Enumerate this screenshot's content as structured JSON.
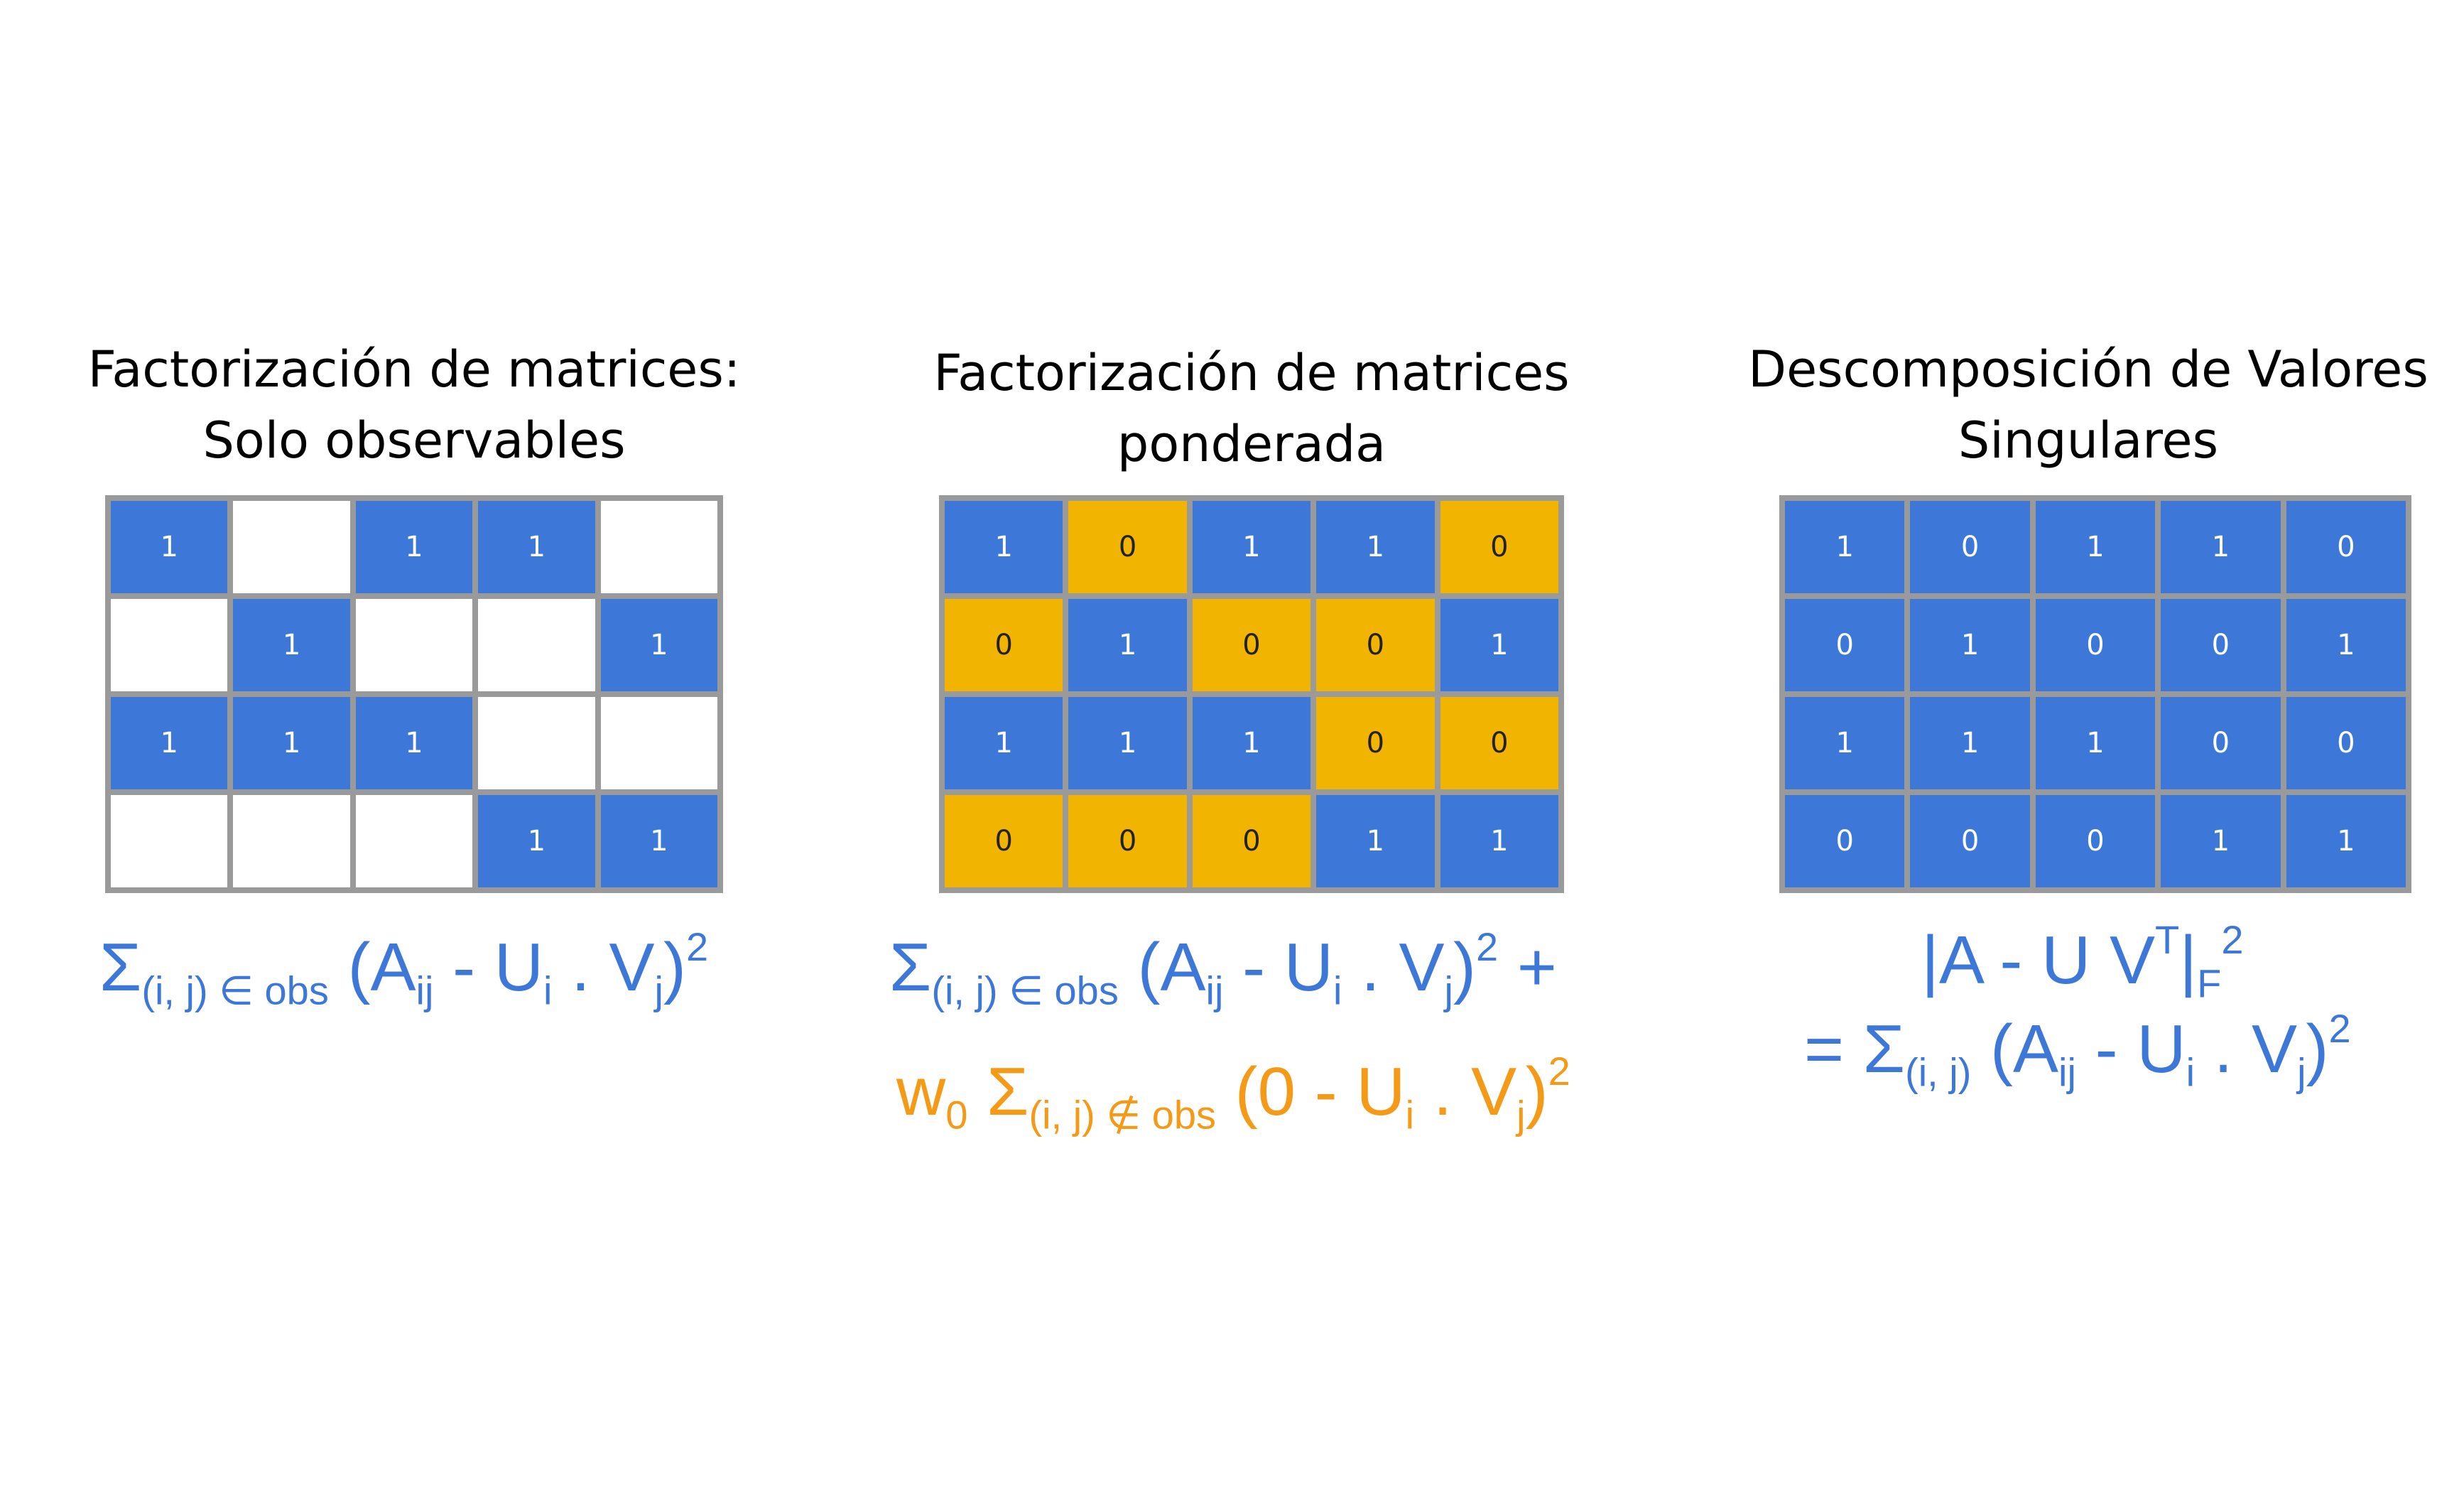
{
  "panels": [
    {
      "title_lines": [
        "Factorización de matrices:",
        "Solo observables"
      ],
      "grid": [
        [
          "1",
          "",
          "1",
          "1",
          ""
        ],
        [
          "",
          "1",
          "",
          "",
          "1"
        ],
        [
          "1",
          "1",
          "1",
          "",
          ""
        ],
        [
          "",
          "",
          "",
          "1",
          "1"
        ]
      ]
    },
    {
      "title_lines": [
        "Factorización de matrices",
        "ponderada"
      ],
      "grid": [
        [
          "1",
          "0",
          "1",
          "1",
          "0"
        ],
        [
          "0",
          "1",
          "0",
          "0",
          "1"
        ],
        [
          "1",
          "1",
          "1",
          "0",
          "0"
        ],
        [
          "0",
          "0",
          "0",
          "1",
          "1"
        ]
      ]
    },
    {
      "title_lines": [
        "Descomposición de Valores",
        "Singulares"
      ],
      "grid": [
        [
          "1",
          "0",
          "1",
          "1",
          "0"
        ],
        [
          "0",
          "1",
          "0",
          "0",
          "1"
        ],
        [
          "1",
          "1",
          "1",
          "0",
          "0"
        ],
        [
          "0",
          "0",
          "0",
          "1",
          "1"
        ]
      ]
    }
  ],
  "formulas": {
    "sigma": "Σ",
    "obs_sub": "(i, j) ∈ obs",
    "notobs_sub": "(i, j) ∉ obs",
    "all_sub": "(i, j)",
    "open_A": "(A",
    "ij": "ij",
    "minus_U": " - U",
    "i": "i",
    "dot_V": " . V",
    "j": "j",
    "close": ")",
    "sq": "2",
    "plus": " +",
    "w": "w",
    "w_sub": "0",
    "zero_open": "(0 - U",
    "norm_left": "|A - U V",
    "T": "T",
    "bar": "|",
    "F": "F",
    "equals": "= "
  },
  "colors": {
    "blue": "#3d78d8",
    "orange_cell": "#f1b400",
    "orange_text": "#f49a17",
    "grid_line": "#9a9a9a"
  }
}
